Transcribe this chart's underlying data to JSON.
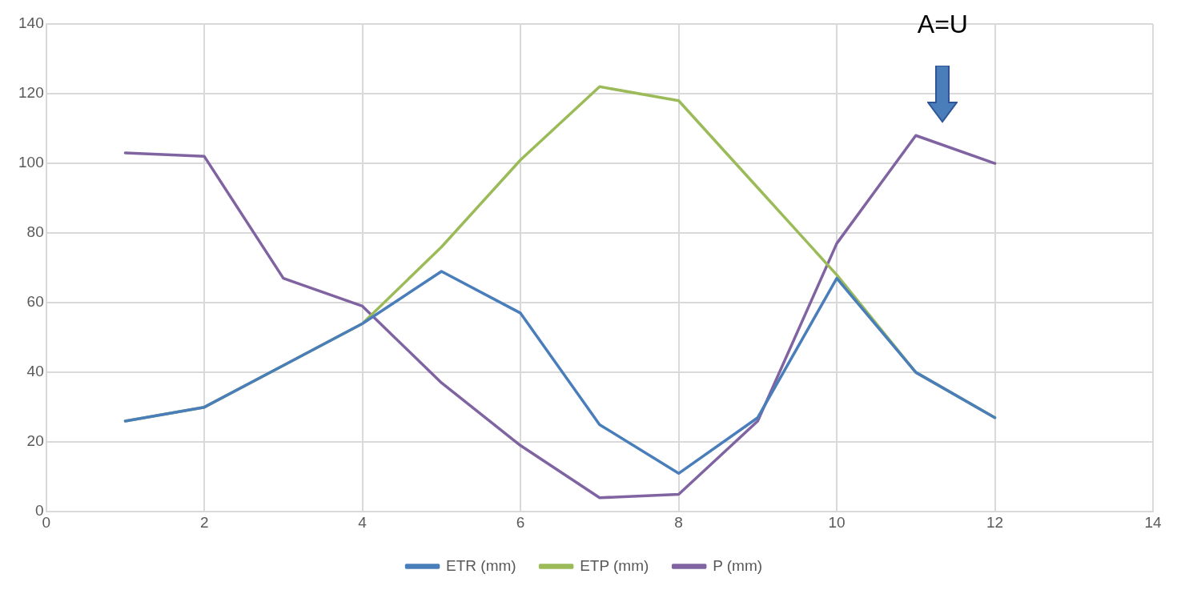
{
  "chart_data": {
    "type": "line",
    "x": [
      1,
      2,
      3,
      4,
      5,
      6,
      7,
      8,
      9,
      10,
      11,
      12
    ],
    "series": [
      {
        "name": "ETR (mm)",
        "color": "#4a7ebb",
        "values": [
          26,
          30,
          42,
          54,
          69,
          57,
          25,
          11,
          27,
          67,
          40,
          27
        ]
      },
      {
        "name": "ETP (mm)",
        "color": "#9bbb59",
        "values": [
          26,
          30,
          42,
          54,
          76,
          101,
          122,
          118,
          93,
          68,
          40,
          27
        ]
      },
      {
        "name": "P (mm)",
        "color": "#8064a2",
        "values": [
          103,
          102,
          67,
          59,
          37,
          19,
          4,
          5,
          26,
          77,
          108,
          100
        ]
      }
    ],
    "xlim": [
      0,
      14
    ],
    "xticks": [
      0,
      2,
      4,
      6,
      8,
      10,
      12,
      14
    ],
    "ylim": [
      0,
      140
    ],
    "yticks": [
      0,
      20,
      40,
      60,
      80,
      100,
      120,
      140
    ],
    "grid": true,
    "legend": "bottom",
    "marker": "none",
    "line_style": "solid",
    "annotations": [
      "A=U"
    ]
  }
}
